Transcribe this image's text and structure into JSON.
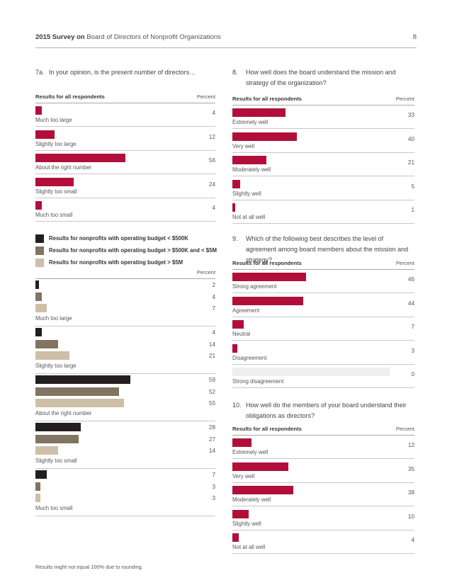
{
  "header": {
    "title_bold": "2015 Survey on",
    "title_rest": "Board of Directors of Nonprofit Organizations",
    "page_number": "8"
  },
  "colors": {
    "accent": "#b10f3a",
    "budget_small": "#231f20",
    "budget_mid": "#817460",
    "budget_large": "#cdbfa8"
  },
  "footnote": "Results might not equal 100% due to rounding.",
  "chart_data": [
    {
      "id": "q7a",
      "type": "bar",
      "orientation": "horizontal",
      "question_number": "7a.",
      "title": "In your opinion, is the present number of directors…",
      "header_left": "Results for all respondents",
      "header_right": "Percent",
      "categories": [
        "Much too large",
        "Slightly too large",
        "About the right number",
        "Slightly too small",
        "Much too small"
      ],
      "values": [
        4,
        12,
        56,
        24,
        4
      ],
      "xlim": [
        0,
        100
      ]
    },
    {
      "id": "q7a_budget",
      "type": "bar",
      "orientation": "horizontal",
      "header_right": "Percent",
      "categories": [
        "Much too large",
        "Slightly too large",
        "About the right number",
        "Slightly too small",
        "Much too small"
      ],
      "series": [
        {
          "name": "Results for nonprofits with operating budget < $500K",
          "values": [
            2,
            4,
            59,
            28,
            7
          ]
        },
        {
          "name": "Results for nonprofits with operating budget > $500K and < $5M",
          "values": [
            4,
            14,
            52,
            27,
            3
          ]
        },
        {
          "name": "Results for nonprofits with operating budget > $5M",
          "values": [
            7,
            21,
            55,
            14,
            3
          ]
        }
      ],
      "xlim": [
        0,
        100
      ]
    },
    {
      "id": "q8",
      "type": "bar",
      "orientation": "horizontal",
      "question_number": "8.",
      "title": "How well does the board understand the mission and strategy of the organization?",
      "header_left": "Results for all respondents",
      "header_right": "Percent",
      "categories": [
        "Extremely well",
        "Very well",
        "Moderately well",
        "Slightly well",
        "Not at all well"
      ],
      "values": [
        33,
        40,
        21,
        5,
        1
      ],
      "xlim": [
        0,
        100
      ]
    },
    {
      "id": "q9",
      "type": "bar",
      "orientation": "horizontal",
      "question_number": "9.",
      "title": "Which of the following best describes the level of agreement among board members about the mission and strategy?",
      "header_left": "Results for all respondents",
      "header_right": "Percent",
      "categories": [
        "Strong agreement",
        "Agreement",
        "Neutral",
        "Disagreement",
        "Strong disagreement"
      ],
      "values": [
        46,
        44,
        7,
        3,
        0
      ],
      "xlim": [
        0,
        100
      ]
    },
    {
      "id": "q10",
      "type": "bar",
      "orientation": "horizontal",
      "question_number": "10.",
      "title": "How well do the members of your board understand their obligations as directors?",
      "header_left": "Results for all respondents",
      "header_right": "Percent",
      "categories": [
        "Extremely well",
        "Very well",
        "Moderately well",
        "Slightly well",
        "Not at all well"
      ],
      "values": [
        12,
        35,
        38,
        10,
        4
      ],
      "xlim": [
        0,
        100
      ]
    }
  ]
}
